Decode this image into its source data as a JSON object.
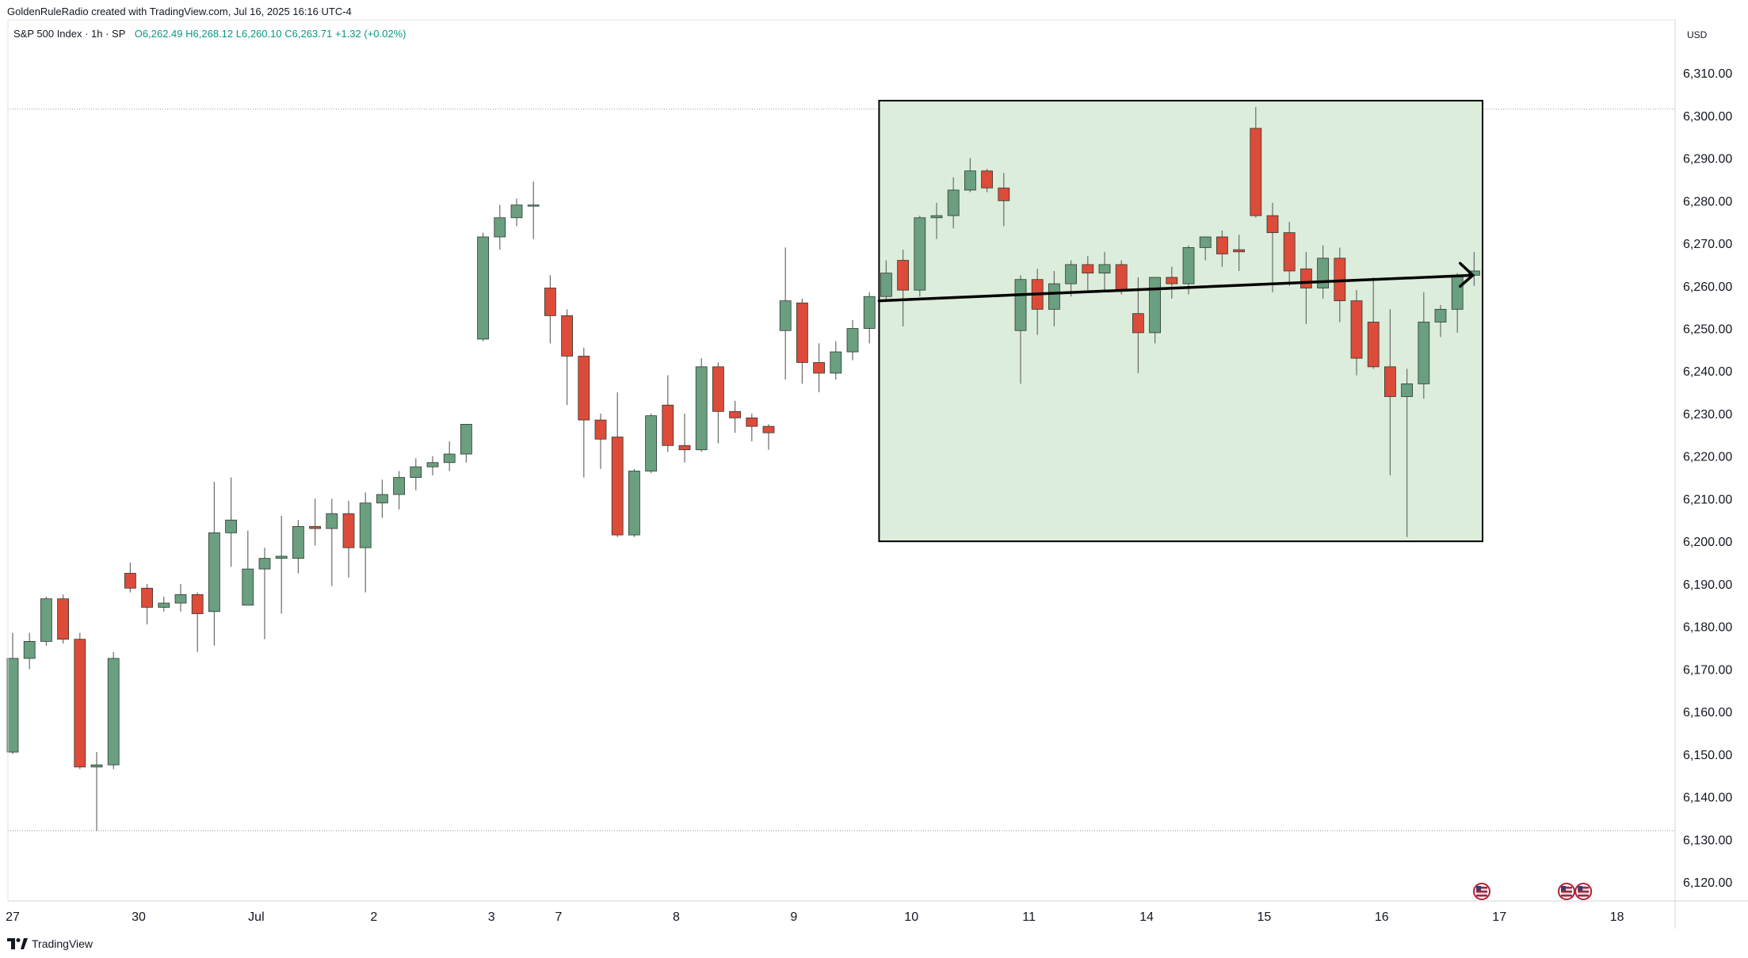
{
  "header": {
    "credit": "GoldenRuleRadio created with TradingView.com, Jul 16, 2025 16:16 UTC-4",
    "symbol": "S&P 500 Index · 1h · SP",
    "open": "O6,262.49",
    "high": "H6,268.12",
    "low": "L6,260.10",
    "close": "C6,263.71",
    "change": "+1.32 (+0.02%)"
  },
  "price_axis": {
    "currency": "USD"
  },
  "footer": {
    "brand": "TradingView"
  },
  "colors": {
    "up": "#6a9f7f",
    "down": "#dd4b39",
    "zone": "#dceddb",
    "line": "#000000"
  },
  "icons": [
    "us-flag-event-icon",
    "us-flag-event-icon",
    "us-flag-event-icon"
  ],
  "chart_data": {
    "type": "candlestick",
    "title": "",
    "xlabel": "",
    "ylabel": "",
    "ylim": [
      6115,
      6322
    ],
    "yticks": [
      "6,120.00",
      "6,130.00",
      "6,140.00",
      "6,150.00",
      "6,160.00",
      "6,170.00",
      "6,180.00",
      "6,190.00",
      "6,200.00",
      "6,210.00",
      "6,220.00",
      "6,230.00",
      "6,240.00",
      "6,250.00",
      "6,260.00",
      "6,270.00",
      "6,280.00",
      "6,290.00",
      "6,300.00",
      "6,310.00"
    ],
    "x_labels": [
      {
        "label": "27",
        "bar": 0
      },
      {
        "label": "30",
        "bar": 7.5
      },
      {
        "label": "Jul",
        "bar": 14.5
      },
      {
        "label": "2",
        "bar": 21.5
      },
      {
        "label": "3",
        "bar": 28.5
      },
      {
        "label": "7",
        "bar": 32.5
      },
      {
        "label": "8",
        "bar": 39.5
      },
      {
        "label": "9",
        "bar": 46.5
      },
      {
        "label": "10",
        "bar": 53.5
      },
      {
        "label": "11",
        "bar": 60.5
      },
      {
        "label": "14",
        "bar": 67.5
      },
      {
        "label": "15",
        "bar": 74.5
      },
      {
        "label": "16",
        "bar": 81.5
      },
      {
        "label": "17",
        "bar": 88.5
      },
      {
        "label": "18",
        "bar": 95.5
      }
    ],
    "candles": [
      [
        6150.5,
        6178.5,
        6150,
        6172.5
      ],
      [
        6172.5,
        6178.5,
        6170,
        6176.5
      ],
      [
        6176.5,
        6187,
        6175.5,
        6186.5
      ],
      [
        6186.5,
        6187.5,
        6176,
        6177
      ],
      [
        6177,
        6178.5,
        6146.5,
        6147
      ],
      [
        6147,
        6150.5,
        6132,
        6147.5
      ],
      [
        6147.5,
        6174,
        6146.5,
        6172.5
      ],
      [
        6192.5,
        6195,
        6188,
        6189
      ],
      [
        6189,
        6190,
        6180.5,
        6184.5
      ],
      [
        6184.5,
        6187,
        6183.5,
        6185.5
      ],
      [
        6185.5,
        6190,
        6183.5,
        6187.5
      ],
      [
        6187.5,
        6188,
        6174,
        6183
      ],
      [
        6183.5,
        6214,
        6175.5,
        6202
      ],
      [
        6202,
        6215,
        6194,
        6205
      ],
      [
        6185,
        6202.5,
        6185,
        6193.5
      ],
      [
        6193.5,
        6198.5,
        6177,
        6196
      ],
      [
        6196,
        6206,
        6183,
        6196.5
      ],
      [
        6196,
        6205,
        6192.5,
        6203.5
      ],
      [
        6203.5,
        6210,
        6199,
        6203
      ],
      [
        6203,
        6210,
        6189.5,
        6206.5
      ],
      [
        6206.5,
        6209.5,
        6191.5,
        6198.5
      ],
      [
        6198.5,
        6211.5,
        6188,
        6209
      ],
      [
        6209,
        6214.5,
        6205.5,
        6211
      ],
      [
        6211,
        6216.5,
        6207.5,
        6215
      ],
      [
        6215,
        6219.5,
        6212,
        6217.5
      ],
      [
        6217.5,
        6220,
        6215.5,
        6218.5
      ],
      [
        6218.5,
        6223.5,
        6216.5,
        6220.5
      ],
      [
        6220.5,
        6227.5,
        6218.5,
        6227.5
      ],
      [
        6247.5,
        6272.5,
        6247,
        6271.5
      ],
      [
        6271.5,
        6279,
        6268.5,
        6276
      ],
      [
        6276,
        6280.5,
        6274,
        6279
      ],
      [
        6279,
        6284.5,
        6271,
        6279
      ],
      [
        6259.5,
        6262.5,
        6246.5,
        6253
      ],
      [
        6253,
        6254.5,
        6232,
        6243.5
      ],
      [
        6243.5,
        6245.5,
        6215,
        6228.5
      ],
      [
        6228.5,
        6230,
        6217,
        6224
      ],
      [
        6224.5,
        6235,
        6201,
        6201.5
      ],
      [
        6201.5,
        6217,
        6201,
        6216.5
      ],
      [
        6216.5,
        6230,
        6216,
        6229.5
      ],
      [
        6232,
        6239,
        6221,
        6222.5
      ],
      [
        6222.5,
        6230,
        6218.5,
        6221.5
      ],
      [
        6221.5,
        6243,
        6221,
        6241
      ],
      [
        6241,
        6242,
        6223,
        6230.5
      ],
      [
        6230.5,
        6233,
        6225.5,
        6229
      ],
      [
        6229,
        6230,
        6223.5,
        6227
      ],
      [
        6227,
        6227.5,
        6221.5,
        6225.5
      ],
      [
        6249.5,
        6269,
        6238,
        6256.5
      ],
      [
        6256,
        6257,
        6237,
        6242
      ],
      [
        6242,
        6246.5,
        6235,
        6239.5
      ],
      [
        6239.5,
        6247,
        6238,
        6244.5
      ],
      [
        6244.5,
        6252,
        6242.5,
        6250
      ],
      [
        6250,
        6258.5,
        6246.5,
        6257.5
      ],
      [
        6257.5,
        6266,
        6256.5,
        6263
      ],
      [
        6266,
        6268.5,
        6250.5,
        6259
      ],
      [
        6259,
        6276.5,
        6257.5,
        6276
      ],
      [
        6276,
        6279.5,
        6271,
        6276.5
      ],
      [
        6276.5,
        6285.5,
        6273.5,
        6282.5
      ],
      [
        6282.5,
        6290,
        6282,
        6287
      ],
      [
        6287,
        6287.5,
        6282,
        6283
      ],
      [
        6283,
        6286.5,
        6274,
        6280
      ],
      [
        6249.5,
        6262.5,
        6237,
        6261.5
      ],
      [
        6261.5,
        6264,
        6248.5,
        6254.5
      ],
      [
        6254.5,
        6263.5,
        6250.5,
        6260.5
      ],
      [
        6260.5,
        6266,
        6257.5,
        6265
      ],
      [
        6265,
        6267,
        6259,
        6263
      ],
      [
        6263,
        6268,
        6259,
        6265
      ],
      [
        6265,
        6266,
        6258,
        6259
      ],
      [
        6253.5,
        6262,
        6239.5,
        6249
      ],
      [
        6249,
        6262,
        6246.5,
        6262
      ],
      [
        6262,
        6264.5,
        6257,
        6260.5
      ],
      [
        6260.5,
        6269.5,
        6258,
        6269
      ],
      [
        6269,
        6271,
        6266,
        6271.5
      ],
      [
        6271.5,
        6273,
        6264.5,
        6267.5
      ],
      [
        6268.5,
        6272,
        6263.5,
        6268
      ],
      [
        6297,
        6302,
        6276,
        6276.5
      ],
      [
        6276.5,
        6279.5,
        6258.5,
        6272.5
      ],
      [
        6272.5,
        6275,
        6260,
        6263.5
      ],
      [
        6264,
        6268,
        6251,
        6259.5
      ],
      [
        6259.5,
        6269.5,
        6257,
        6266.5
      ],
      [
        6266.5,
        6269,
        6251.5,
        6256.5
      ],
      [
        6256.5,
        6259,
        6239,
        6243
      ],
      [
        6251.5,
        6262,
        6240.5,
        6241
      ],
      [
        6241,
        6254.5,
        6215.5,
        6234
      ],
      [
        6234,
        6240.5,
        6201,
        6237
      ],
      [
        6237,
        6258.5,
        6233.5,
        6251.5
      ],
      [
        6251.5,
        6255.5,
        6248,
        6254.5
      ],
      [
        6254.5,
        6263,
        6249,
        6262.5
      ],
      [
        6262.5,
        6268,
        6260,
        6263.5
      ]
    ],
    "annotations": {
      "range_box": {
        "bar_start": 52,
        "bar_end": 87.5,
        "price_low": 6200,
        "price_high": 6303.5
      },
      "trend_arrow": {
        "from_bar": 52,
        "from_price": 6256.5,
        "to_bar": 86.5,
        "to_price": 6262.5
      },
      "horizontal_levels": [
        6301.5,
        6132
      ]
    }
  }
}
